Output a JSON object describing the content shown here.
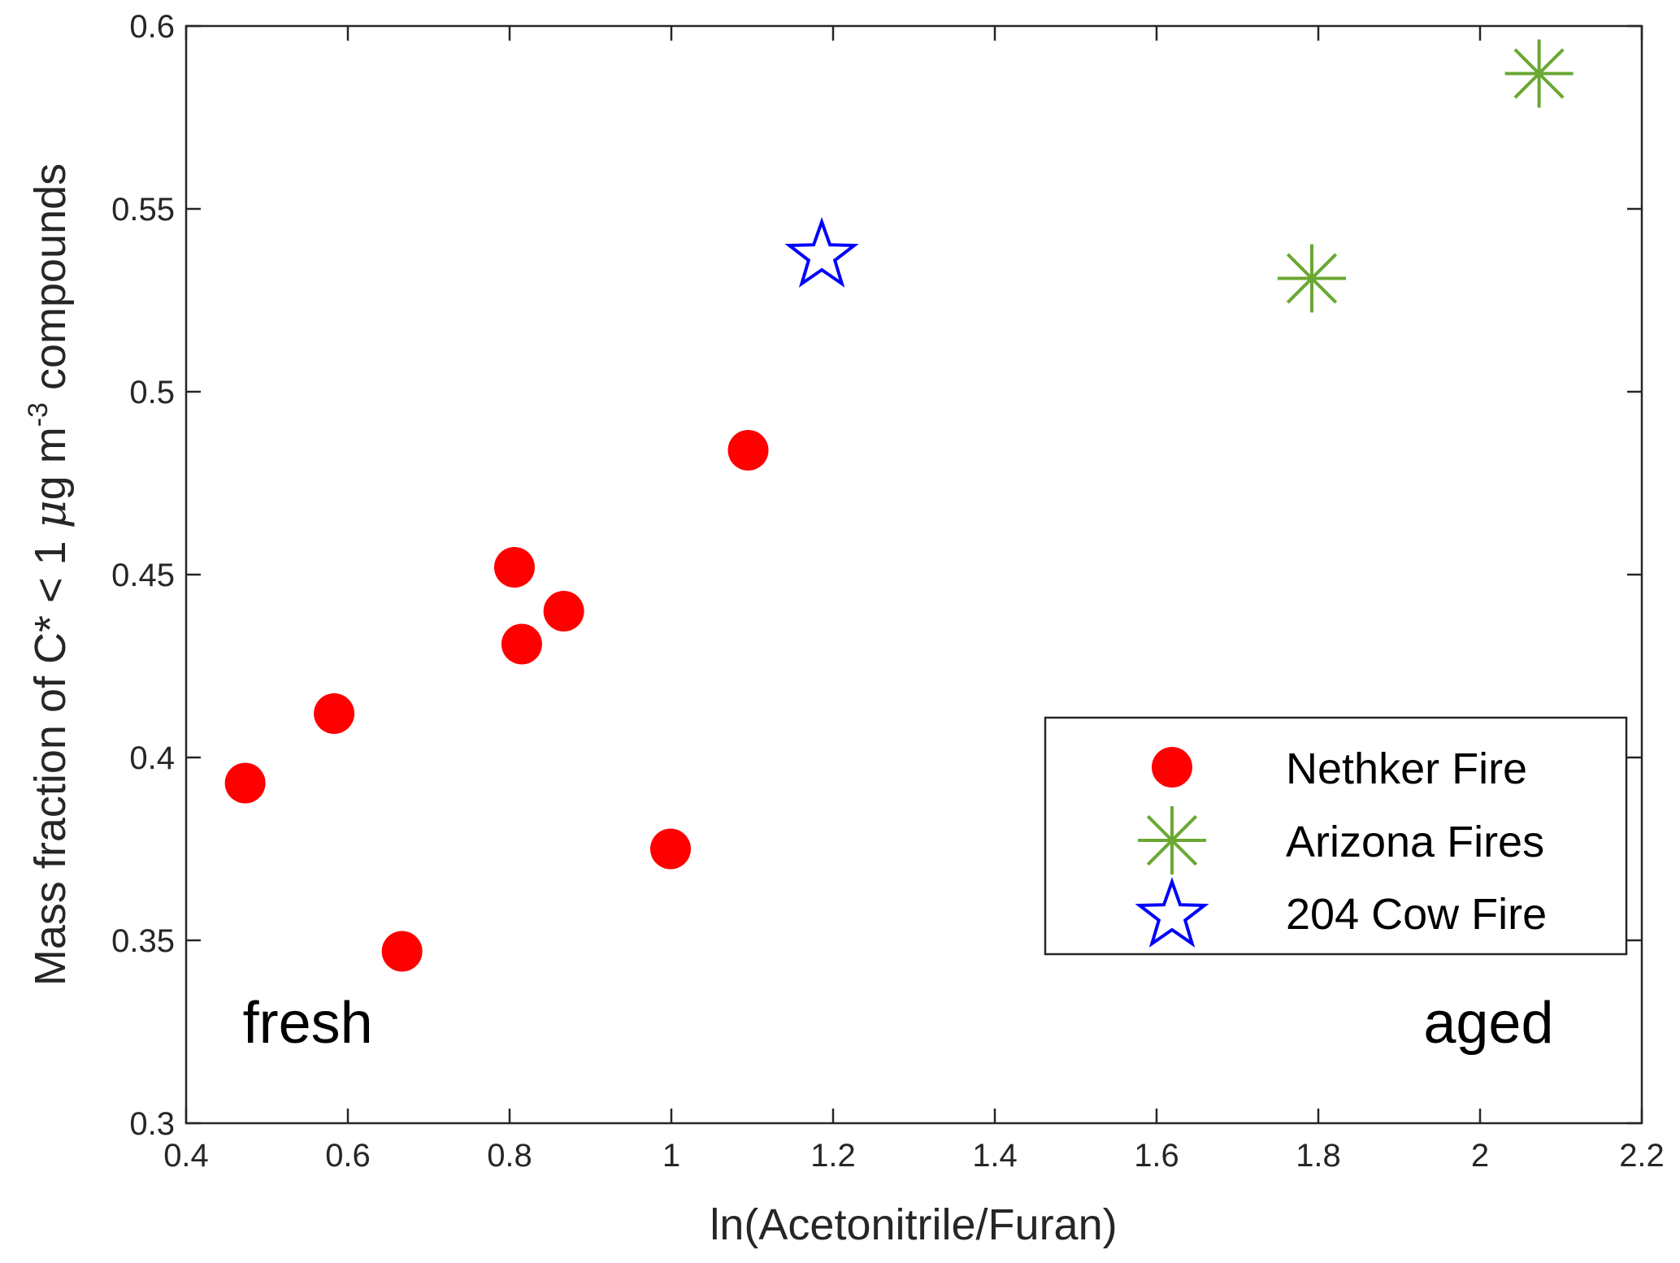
{
  "chart_data": {
    "type": "scatter",
    "xlabel": "ln(Acetonitrile/Furan)",
    "ylabel_parts": {
      "prefix": "Mass fraction of C* < 1 ",
      "mu": "μ",
      "unit": "g m",
      "exponent": "-3",
      "suffix": " compounds"
    },
    "xlim": [
      0.4,
      2.2
    ],
    "ylim": [
      0.3,
      0.6
    ],
    "xticks": [
      "0.4",
      "0.6",
      "0.8",
      "1",
      "1.2",
      "1.4",
      "1.6",
      "1.8",
      "2",
      "2.2"
    ],
    "yticks": [
      "0.3",
      "0.35",
      "0.4",
      "0.45",
      "0.5",
      "0.55",
      "0.6"
    ],
    "grid": false,
    "legend_position": "lower-right",
    "annotations": [
      {
        "text": "fresh",
        "x": 0.47,
        "y": 0.322
      },
      {
        "text": "aged",
        "x": 1.93,
        "y": 0.322
      }
    ],
    "series": [
      {
        "name": "Nethker Fire",
        "marker": "circle",
        "color": "#ff0000",
        "points": [
          {
            "x": 0.473,
            "y": 0.393
          },
          {
            "x": 0.583,
            "y": 0.412
          },
          {
            "x": 0.667,
            "y": 0.347
          },
          {
            "x": 0.806,
            "y": 0.452
          },
          {
            "x": 0.815,
            "y": 0.431
          },
          {
            "x": 0.867,
            "y": 0.44
          },
          {
            "x": 0.999,
            "y": 0.375
          },
          {
            "x": 1.095,
            "y": 0.484
          }
        ]
      },
      {
        "name": "Arizona Fires",
        "marker": "asterisk",
        "color": "#6aa832",
        "points": [
          {
            "x": 1.792,
            "y": 0.531
          },
          {
            "x": 2.073,
            "y": 0.587
          }
        ]
      },
      {
        "name": "204 Cow Fire",
        "marker": "star",
        "color": "#0000ff",
        "points": [
          {
            "x": 1.186,
            "y": 0.538
          }
        ]
      }
    ]
  }
}
